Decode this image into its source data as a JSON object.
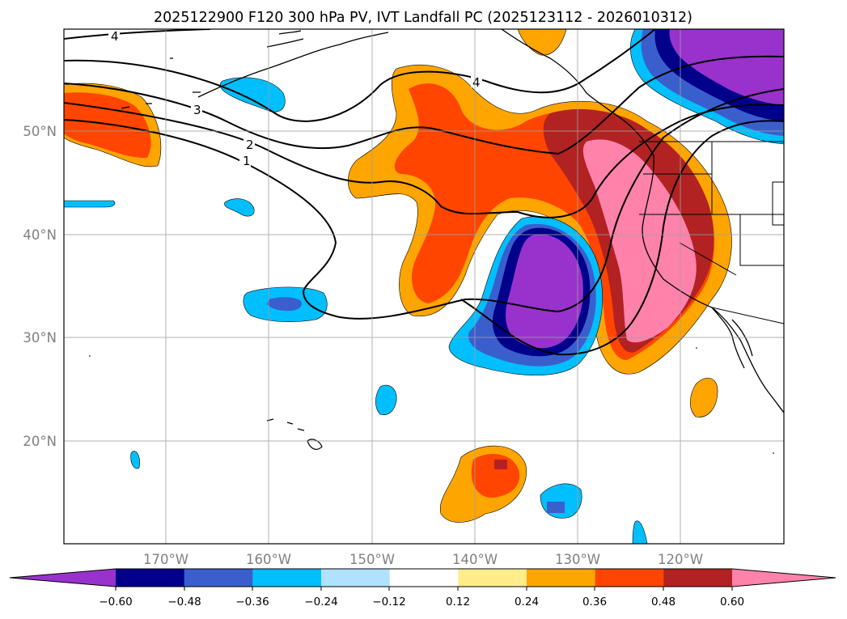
{
  "title": "2025122900 F120 300 hPa PV, IVT Landfall PC (2025123112 - 2026010312)",
  "map": {
    "lon_labels": [
      "170°W",
      "160°W",
      "150°W",
      "140°W",
      "130°W",
      "120°W"
    ],
    "lat_labels": [
      "50°N",
      "40°N",
      "30°N",
      "20°N"
    ],
    "pv_contour_labels": [
      "1",
      "2",
      "3",
      "4",
      "4"
    ]
  },
  "colorbar": {
    "tick_labels": [
      "−0.60",
      "−0.48",
      "−0.36",
      "−0.24",
      "−0.12",
      "0.12",
      "0.24",
      "0.36",
      "0.48",
      "0.60"
    ],
    "levels": [
      -0.6,
      -0.48,
      -0.36,
      -0.24,
      -0.12,
      0.12,
      0.24,
      0.36,
      0.48,
      0.6
    ],
    "colors": [
      "#9932cc",
      "#00008b",
      "#3a5fcd",
      "#00bfff",
      "#b0e2ff",
      "#ffffff",
      "#ffec8b",
      "#ffa500",
      "#ff4500",
      "#b22222",
      "#ff82ab"
    ]
  }
}
